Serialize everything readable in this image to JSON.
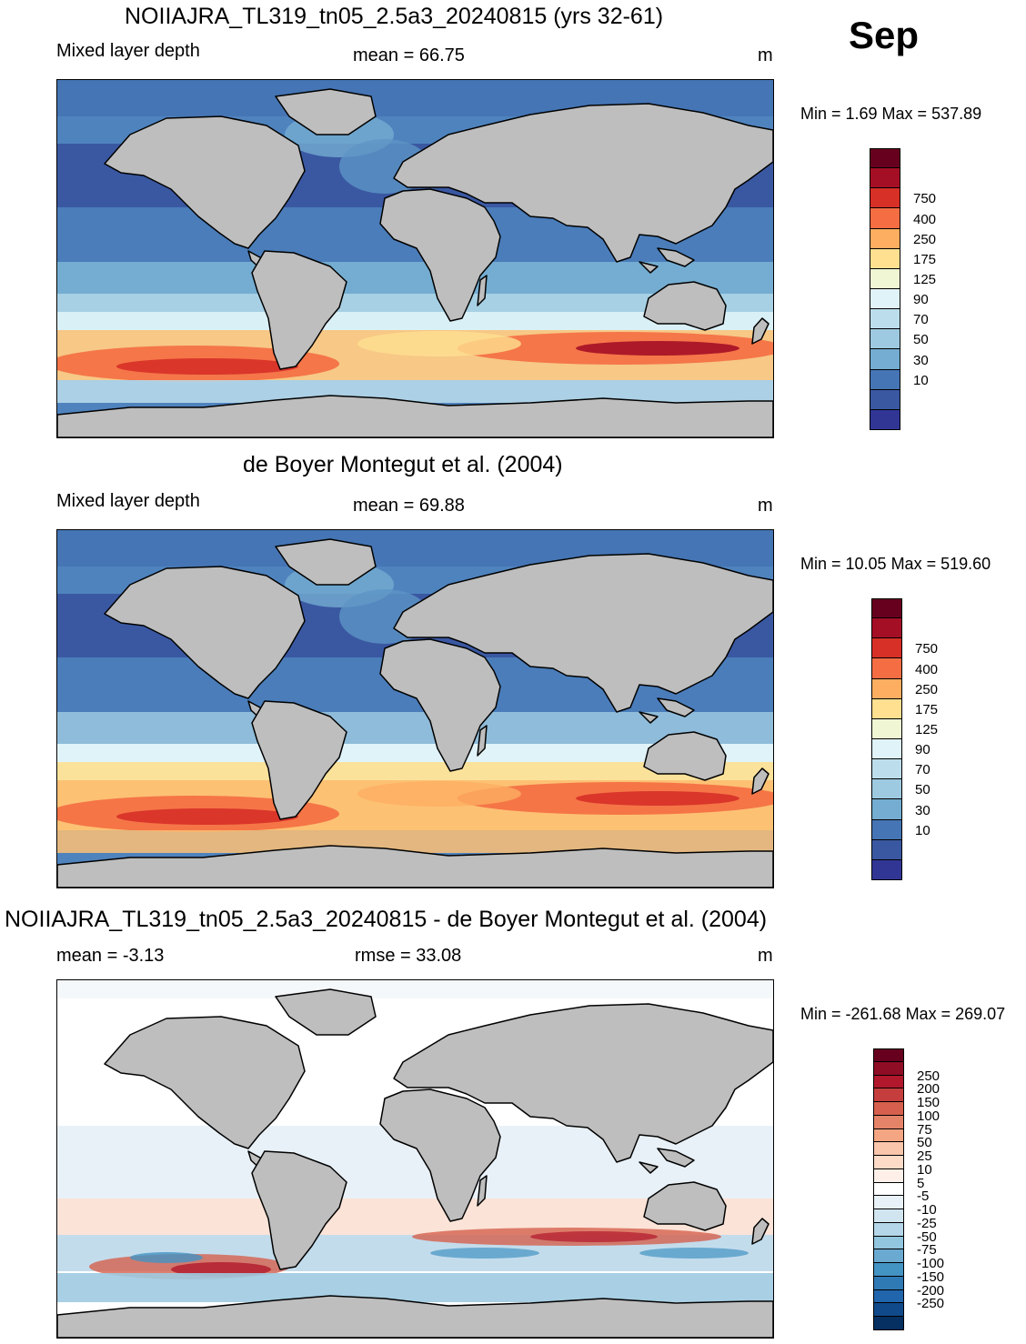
{
  "month": "Sep",
  "panels": [
    {
      "title": "NOIIAJRA_TL319_tn05_2.5a3_20240815 (yrs 32-61)",
      "left_label": "Mixed layer depth",
      "center_label": "mean =  66.75",
      "unit": "m",
      "minmax": "Min =    1.69 Max = 537.89",
      "colorbar_labels": [
        "750",
        "400",
        "250",
        "175",
        "125",
        "90",
        "70",
        "50",
        "30",
        "10"
      ],
      "colorbar_colors": [
        "#67001f",
        "#a50f26",
        "#d73027",
        "#f46d43",
        "#fdae61",
        "#fee090",
        "#f0f6d4",
        "#e0f3f8",
        "#bcdeec",
        "#9ecae1",
        "#74add1",
        "#4575b4",
        "#3a58a2",
        "#313695"
      ]
    },
    {
      "title": "de Boyer Montegut et al. (2004)",
      "left_label": "Mixed layer depth",
      "center_label": "mean =  69.88",
      "unit": "m",
      "minmax": "Min =  10.05 Max = 519.60",
      "colorbar_labels": [
        "750",
        "400",
        "250",
        "175",
        "125",
        "90",
        "70",
        "50",
        "30",
        "10"
      ],
      "colorbar_colors": [
        "#67001f",
        "#a50f26",
        "#d73027",
        "#f46d43",
        "#fdae61",
        "#fee090",
        "#f0f6d4",
        "#e0f3f8",
        "#bcdeec",
        "#9ecae1",
        "#74add1",
        "#4575b4",
        "#3a58a2",
        "#313695"
      ]
    },
    {
      "title": "NOIIAJRA_TL319_tn05_2.5a3_20240815 - de Boyer Montegut et al. (2004)",
      "left_label": "mean =  -3.13",
      "center_label": "rmse =  33.08",
      "unit": "m",
      "minmax": "Min = -261.68 Max = 269.07",
      "colorbar_labels": [
        "250",
        "200",
        "150",
        "100",
        "75",
        "50",
        "25",
        "10",
        "5",
        "-5",
        "-10",
        "-25",
        "-50",
        "-75",
        "-100",
        "-150",
        "-200",
        "-250"
      ],
      "colorbar_colors": [
        "#67001f",
        "#8f0d25",
        "#b2182b",
        "#c53e3d",
        "#d6604d",
        "#e58368",
        "#f4a582",
        "#f9c5ab",
        "#fddbc7",
        "#fef0e8",
        "#ffffff",
        "#e8f1f7",
        "#d1e5f0",
        "#b4d6e8",
        "#92c5de",
        "#6aa9d0",
        "#4393c3",
        "#2f79b5",
        "#2166ac",
        "#104a8a",
        "#053061"
      ]
    }
  ]
}
